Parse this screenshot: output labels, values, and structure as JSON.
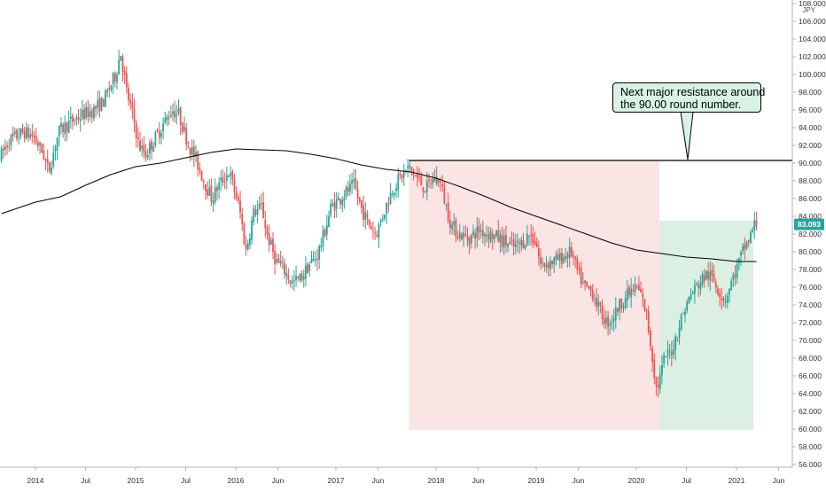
{
  "chart_data": {
    "type": "candlestick",
    "title": "",
    "currency_label": "JPY",
    "ylim": [
      55.0,
      109.0
    ],
    "y_ticks": [
      "56.000",
      "58.000",
      "60.000",
      "62.000",
      "64.000",
      "66.000",
      "68.000",
      "70.000",
      "72.000",
      "74.000",
      "76.000",
      "78.000",
      "80.000",
      "82.000",
      "84.000",
      "86.000",
      "88.000",
      "90.000",
      "92.000",
      "94.000",
      "96.000",
      "98.000",
      "100.000",
      "102.000",
      "104.000",
      "106.000",
      "108.000"
    ],
    "x_ticks": [
      {
        "label": "2014",
        "t": 2014.0
      },
      {
        "label": "Jul",
        "t": 2014.5
      },
      {
        "label": "2015",
        "t": 2015.0
      },
      {
        "label": "Jul",
        "t": 2015.5
      },
      {
        "label": "2016",
        "t": 2016.0
      },
      {
        "label": "Jun",
        "t": 2016.42
      },
      {
        "label": "2017",
        "t": 2017.0
      },
      {
        "label": "Jun",
        "t": 2017.42
      },
      {
        "label": "2018",
        "t": 2018.0
      },
      {
        "label": "Jun",
        "t": 2018.42
      },
      {
        "label": "2019",
        "t": 2019.0
      },
      {
        "label": "Jun",
        "t": 2019.42
      },
      {
        "label": "2020",
        "t": 2020.0
      },
      {
        "label": "Jul",
        "t": 2020.5
      },
      {
        "label": "2021",
        "t": 2021.0
      },
      {
        "label": "Jun",
        "t": 2021.42
      }
    ],
    "price_path": [
      [
        2013.66,
        90.5
      ],
      [
        2013.75,
        92.5
      ],
      [
        2013.9,
        93.5
      ],
      [
        2014.0,
        93.0
      ],
      [
        2014.1,
        91.0
      ],
      [
        2014.15,
        89.0
      ],
      [
        2014.25,
        93.5
      ],
      [
        2014.35,
        94.5
      ],
      [
        2014.5,
        95.5
      ],
      [
        2014.6,
        96.0
      ],
      [
        2014.7,
        97.0
      ],
      [
        2014.82,
        100.0
      ],
      [
        2014.87,
        102.5
      ],
      [
        2014.93,
        98.0
      ],
      [
        2015.0,
        95.0
      ],
      [
        2015.05,
        92.0
      ],
      [
        2015.12,
        91.0
      ],
      [
        2015.25,
        93.5
      ],
      [
        2015.38,
        96.0
      ],
      [
        2015.45,
        95.5
      ],
      [
        2015.55,
        92.0
      ],
      [
        2015.62,
        90.5
      ],
      [
        2015.7,
        88.0
      ],
      [
        2015.78,
        86.0
      ],
      [
        2015.85,
        87.5
      ],
      [
        2015.95,
        89.0
      ],
      [
        2016.02,
        86.5
      ],
      [
        2016.07,
        84.0
      ],
      [
        2016.12,
        80.0
      ],
      [
        2016.2,
        84.5
      ],
      [
        2016.28,
        85.0
      ],
      [
        2016.33,
        82.0
      ],
      [
        2016.42,
        79.0
      ],
      [
        2016.5,
        78.0
      ],
      [
        2016.58,
        76.5
      ],
      [
        2016.67,
        77.0
      ],
      [
        2016.75,
        78.5
      ],
      [
        2016.83,
        79.5
      ],
      [
        2016.9,
        82.0
      ],
      [
        2016.97,
        85.0
      ],
      [
        2017.1,
        86.5
      ],
      [
        2017.2,
        87.5
      ],
      [
        2017.27,
        85.0
      ],
      [
        2017.33,
        83.5
      ],
      [
        2017.42,
        82.0
      ],
      [
        2017.5,
        84.5
      ],
      [
        2017.58,
        87.0
      ],
      [
        2017.67,
        88.5
      ],
      [
        2017.75,
        89.5
      ],
      [
        2017.85,
        88.0
      ],
      [
        2017.92,
        87.0
      ],
      [
        2017.97,
        88.0
      ],
      [
        2018.05,
        88.3
      ],
      [
        2018.1,
        86.0
      ],
      [
        2018.17,
        83.0
      ],
      [
        2018.25,
        82.0
      ],
      [
        2018.35,
        81.5
      ],
      [
        2018.45,
        82.5
      ],
      [
        2018.55,
        82.0
      ],
      [
        2018.65,
        81.5
      ],
      [
        2018.72,
        81.0
      ],
      [
        2018.8,
        80.5
      ],
      [
        2018.88,
        81.0
      ],
      [
        2018.95,
        82.0
      ],
      [
        2019.02,
        81.0
      ],
      [
        2019.06,
        78.5
      ],
      [
        2019.15,
        78.8
      ],
      [
        2019.22,
        79.0
      ],
      [
        2019.3,
        79.5
      ],
      [
        2019.37,
        80.0
      ],
      [
        2019.42,
        78.0
      ],
      [
        2019.5,
        76.0
      ],
      [
        2019.58,
        75.5
      ],
      [
        2019.65,
        73.5
      ],
      [
        2019.72,
        72.0
      ],
      [
        2019.78,
        72.5
      ],
      [
        2019.85,
        74.0
      ],
      [
        2019.92,
        75.0
      ],
      [
        2019.97,
        75.5
      ],
      [
        2020.02,
        76.0
      ],
      [
        2020.07,
        75.0
      ],
      [
        2020.12,
        73.0
      ],
      [
        2020.18,
        68.0
      ],
      [
        2020.22,
        64.5
      ],
      [
        2020.25,
        65.5
      ],
      [
        2020.3,
        68.0
      ],
      [
        2020.38,
        69.0
      ],
      [
        2020.44,
        71.5
      ],
      [
        2020.5,
        73.5
      ],
      [
        2020.58,
        75.5
      ],
      [
        2020.65,
        76.5
      ],
      [
        2020.72,
        77.5
      ],
      [
        2020.78,
        77.0
      ],
      [
        2020.85,
        75.5
      ],
      [
        2020.9,
        74.5
      ],
      [
        2020.95,
        76.0
      ],
      [
        2021.0,
        77.5
      ],
      [
        2021.05,
        79.0
      ],
      [
        2021.1,
        80.5
      ],
      [
        2021.15,
        81.5
      ],
      [
        2021.2,
        83.1
      ]
    ],
    "moving_average": [
      [
        2013.66,
        84.3
      ],
      [
        2014.0,
        85.6
      ],
      [
        2014.25,
        86.2
      ],
      [
        2014.5,
        87.5
      ],
      [
        2014.75,
        88.7
      ],
      [
        2015.0,
        89.6
      ],
      [
        2015.25,
        90.0
      ],
      [
        2015.5,
        90.6
      ],
      [
        2015.75,
        91.2
      ],
      [
        2016.0,
        91.6
      ],
      [
        2016.25,
        91.5
      ],
      [
        2016.5,
        91.4
      ],
      [
        2016.75,
        91.0
      ],
      [
        2017.0,
        90.5
      ],
      [
        2017.25,
        89.8
      ],
      [
        2017.5,
        89.3
      ],
      [
        2017.75,
        89.0
      ],
      [
        2018.0,
        88.3
      ],
      [
        2018.25,
        87.3
      ],
      [
        2018.5,
        86.2
      ],
      [
        2018.75,
        85.0
      ],
      [
        2019.0,
        84.0
      ],
      [
        2019.25,
        83.0
      ],
      [
        2019.5,
        82.0
      ],
      [
        2019.75,
        81.0
      ],
      [
        2020.0,
        80.2
      ],
      [
        2020.25,
        79.8
      ],
      [
        2020.5,
        79.4
      ],
      [
        2020.75,
        79.2
      ],
      [
        2021.0,
        78.9
      ],
      [
        2021.2,
        78.9
      ]
    ],
    "horizontal_line": {
      "value": 90.3
    },
    "boxes": [
      {
        "name": "decline-zone",
        "x": [
          2017.73,
          2020.23
        ],
        "y": [
          59.9,
          90.3
        ],
        "color": "#fbe4e4"
      },
      {
        "name": "rally-zone",
        "x": [
          2020.23,
          2021.17
        ],
        "y": [
          59.9,
          83.5
        ],
        "color": "#dbf0e3"
      }
    ],
    "last_price": {
      "label": "83.093",
      "value": 83.093,
      "color": "#26a69a"
    },
    "colors": {
      "up": "#26a69a",
      "down": "#ef5350",
      "ma": "#000000"
    }
  },
  "annotation": {
    "line1": "Next major resistance around",
    "line2": "the 90.00 round number."
  }
}
